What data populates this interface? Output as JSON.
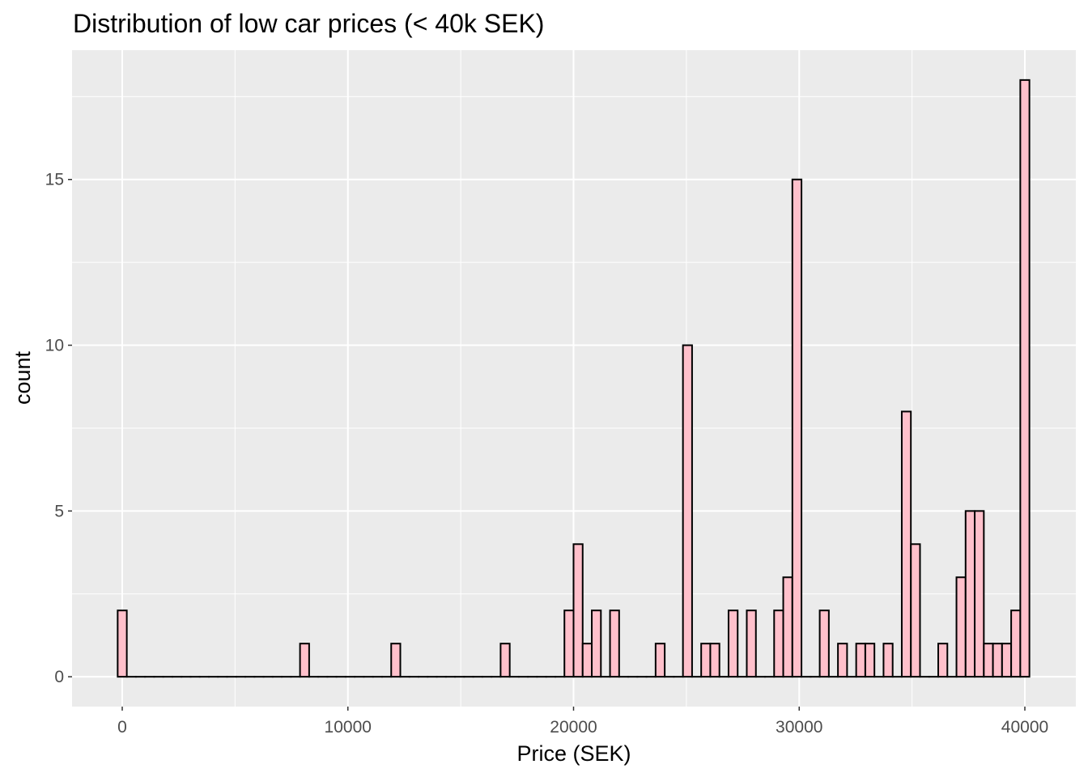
{
  "chart_data": {
    "type": "bar",
    "title": "Distribution of low car prices (< 40k SEK)",
    "xlabel": "Price (SEK)",
    "ylabel": "count",
    "bins": 100,
    "bin_start": 0,
    "bin_end": 40000,
    "counts": [
      2,
      0,
      0,
      0,
      0,
      0,
      0,
      0,
      0,
      0,
      0,
      0,
      0,
      0,
      0,
      0,
      0,
      0,
      0,
      0,
      1,
      0,
      0,
      0,
      0,
      0,
      0,
      0,
      0,
      0,
      1,
      0,
      0,
      0,
      0,
      0,
      0,
      0,
      0,
      0,
      0,
      0,
      1,
      0,
      0,
      0,
      0,
      0,
      0,
      2,
      4,
      1,
      2,
      0,
      2,
      0,
      0,
      0,
      0,
      1,
      0,
      0,
      10,
      0,
      1,
      1,
      0,
      2,
      0,
      2,
      0,
      0,
      2,
      3,
      15,
      0,
      0,
      2,
      0,
      1,
      0,
      1,
      1,
      0,
      1,
      0,
      8,
      4,
      0,
      0,
      1,
      0,
      3,
      5,
      5,
      1,
      1,
      1,
      2,
      18
    ],
    "xlim": [
      -2224,
      42260
    ],
    "ylim": [
      -0.9,
      18.9
    ],
    "xticks": [
      0,
      10000,
      20000,
      30000,
      40000
    ],
    "xtick_labels": [
      "0",
      "10000",
      "20000",
      "30000",
      "40000"
    ],
    "yticks": [
      0,
      5,
      10,
      15
    ],
    "ytick_labels": [
      "0",
      "5",
      "10",
      "15"
    ],
    "fill": "#FFC0CB",
    "outline": "#000000",
    "panel_bg": "#EBEBEB",
    "grid": true
  }
}
